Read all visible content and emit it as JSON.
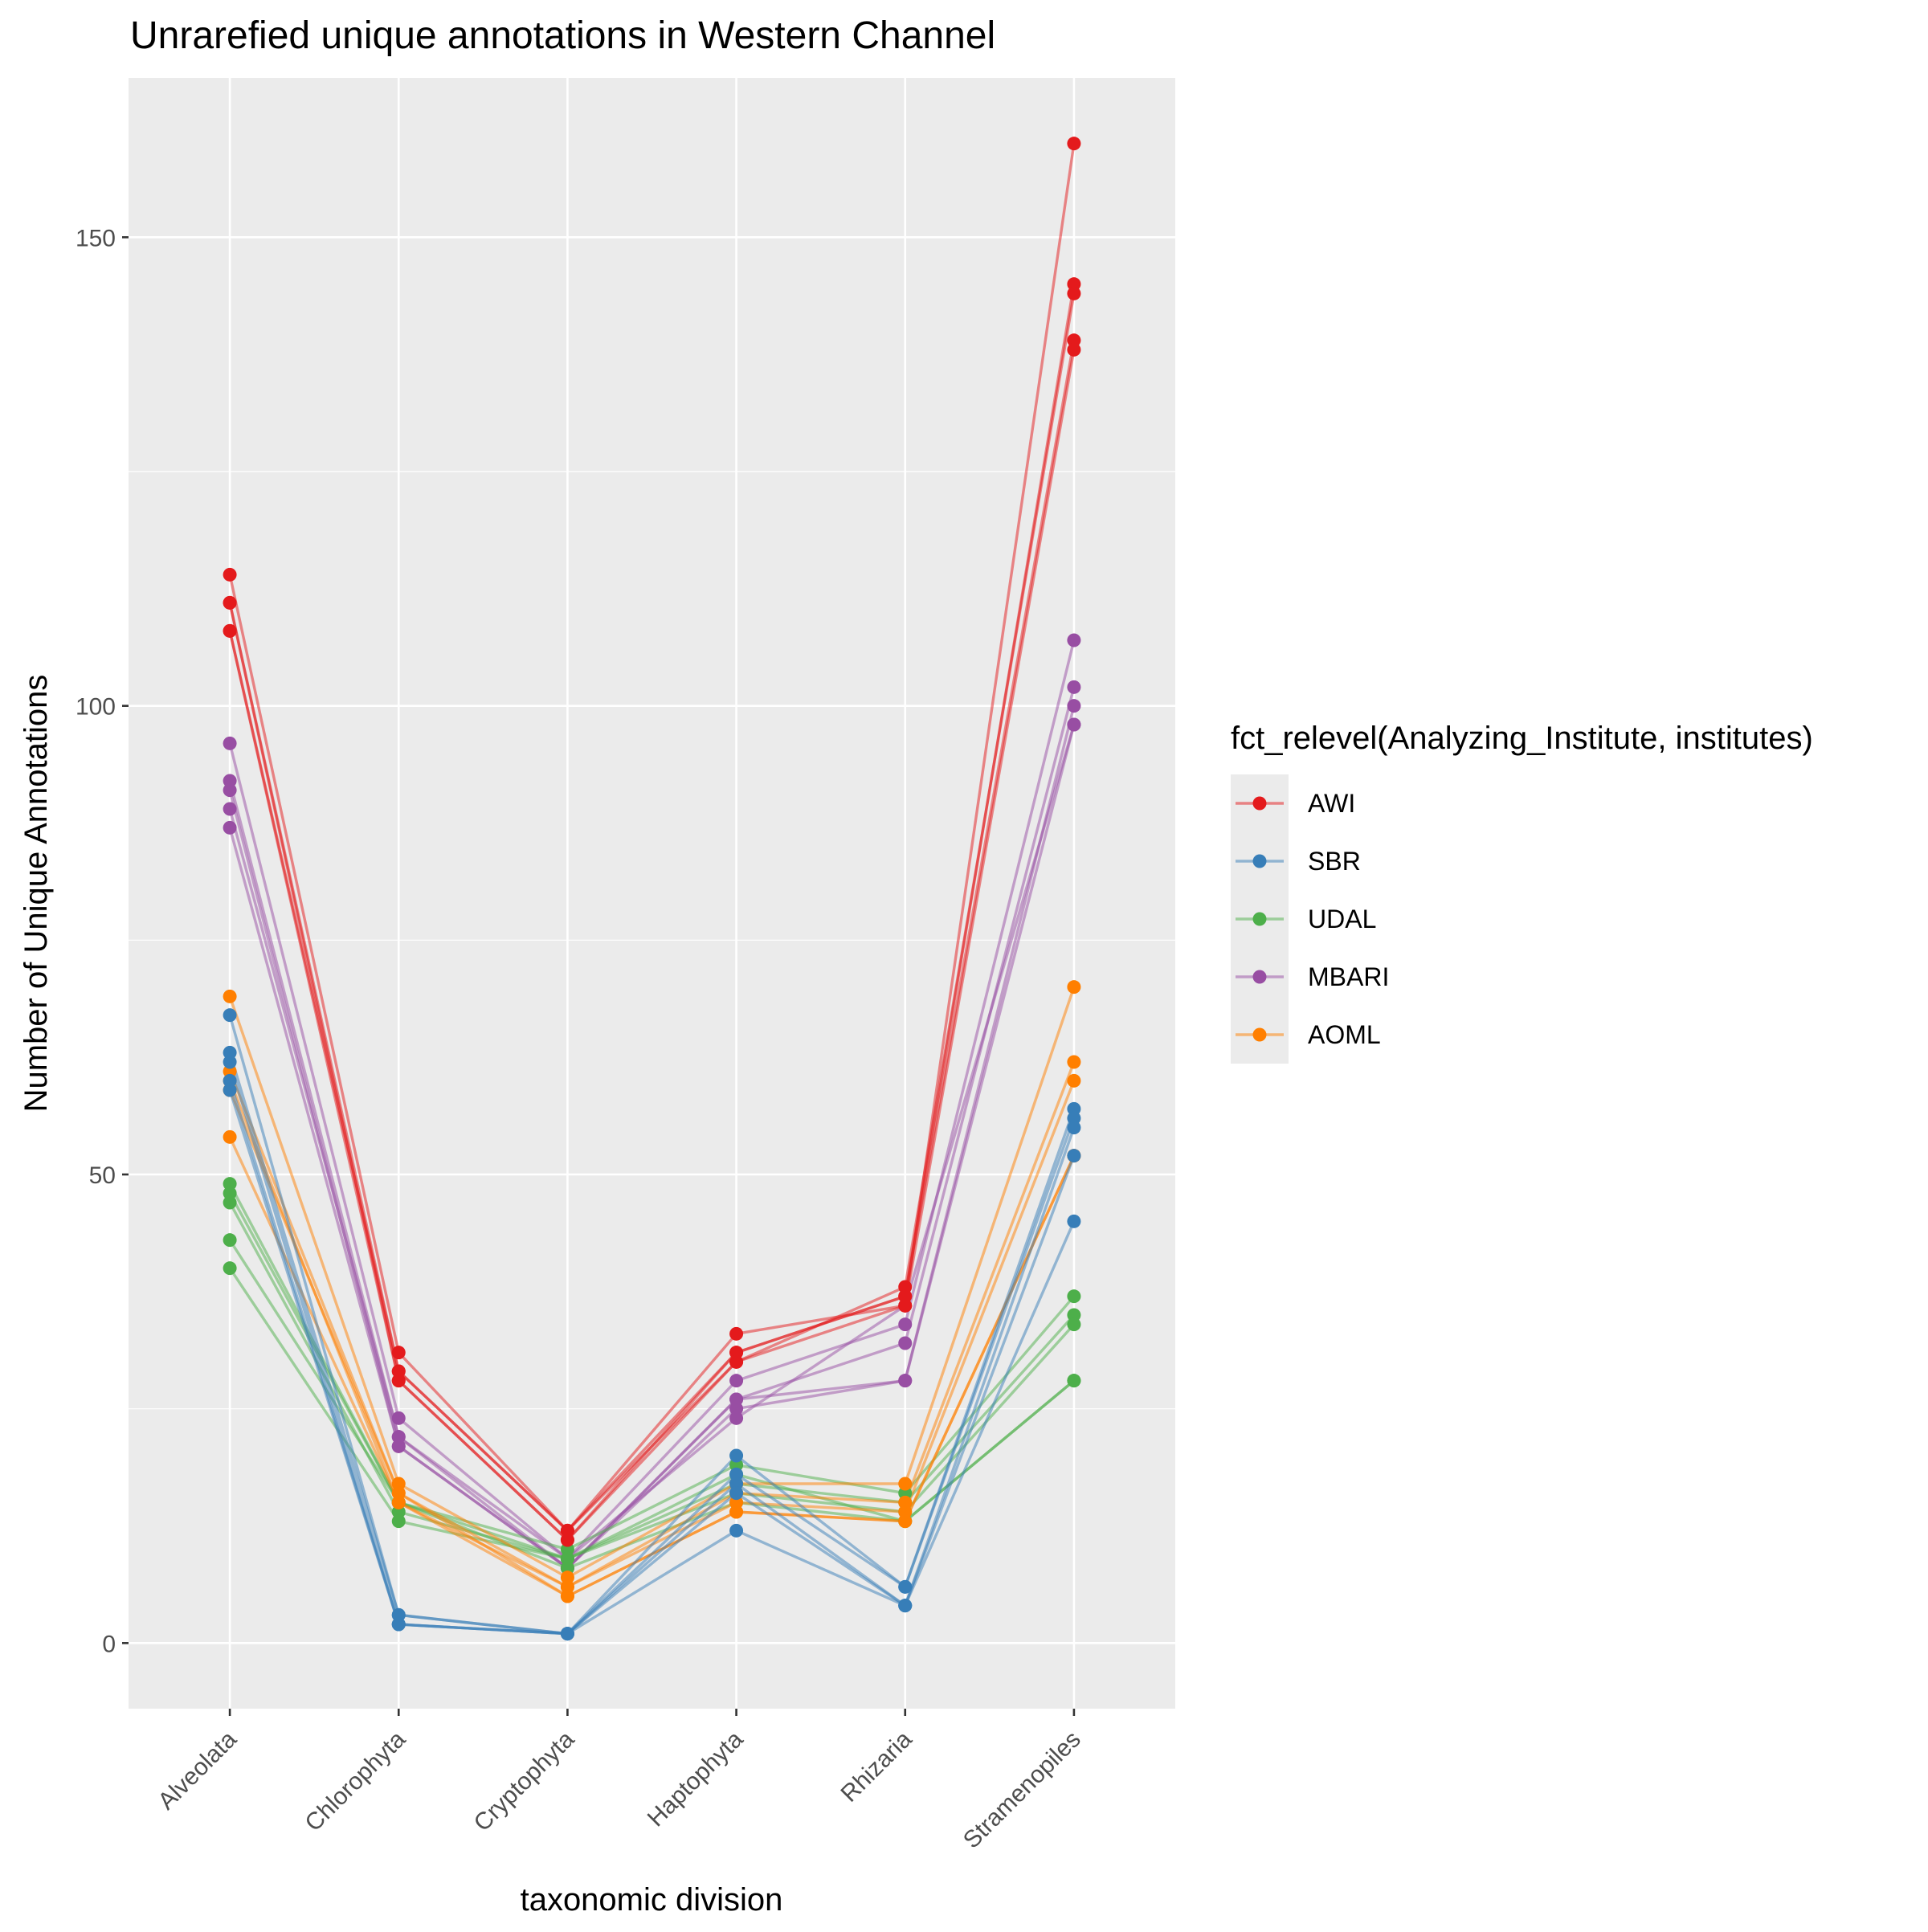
{
  "chart_data": {
    "type": "line",
    "title": "Unrarefied unique annotations in Western Channel",
    "xlabel": "taxonomic division",
    "ylabel": "Number of Unique Annotations",
    "categories": [
      "Alveolata",
      "Chlorophyta",
      "Cryptophyta",
      "Haptophyta",
      "Rhizaria",
      "Stramenopiles"
    ],
    "ylim": [
      -7,
      167
    ],
    "yticks": [
      0,
      50,
      100,
      150
    ],
    "ytick_labels": [
      "0",
      "50",
      "100",
      "150"
    ],
    "grid": true,
    "legend": {
      "title": "fct_relevel(Analyzing_Institute, institutes)",
      "position": "right",
      "entries": [
        "AWI",
        "SBR",
        "UDAL",
        "MBARI",
        "AOML"
      ]
    },
    "series": [
      {
        "name": "MBARI",
        "color": "#984EA3",
        "values": [
          96,
          24,
          9,
          28,
          34,
          107
        ]
      },
      {
        "name": "MBARI",
        "color": "#984EA3",
        "values": [
          92,
          22,
          8,
          26,
          32,
          102
        ]
      },
      {
        "name": "MBARI",
        "color": "#984EA3",
        "values": [
          91,
          21,
          8,
          25,
          28,
          100
        ]
      },
      {
        "name": "MBARI",
        "color": "#984EA3",
        "values": [
          89,
          22,
          9,
          24,
          36,
          98
        ]
      },
      {
        "name": "MBARI",
        "color": "#984EA3",
        "values": [
          87,
          21,
          8,
          26,
          28,
          98
        ]
      },
      {
        "name": "UDAL",
        "color": "#4DAF4A",
        "values": [
          49,
          15,
          10,
          19,
          16,
          37
        ]
      },
      {
        "name": "UDAL",
        "color": "#4DAF4A",
        "values": [
          48,
          15,
          9,
          17,
          15,
          35
        ]
      },
      {
        "name": "UDAL",
        "color": "#4DAF4A",
        "values": [
          47,
          14,
          9,
          16,
          14,
          34
        ]
      },
      {
        "name": "UDAL",
        "color": "#4DAF4A",
        "values": [
          43,
          15,
          8,
          15,
          13,
          28
        ]
      },
      {
        "name": "UDAL",
        "color": "#4DAF4A",
        "values": [
          40,
          13,
          9,
          18,
          13,
          28
        ]
      },
      {
        "name": "AOML",
        "color": "#FF7F00",
        "values": [
          69,
          17,
          7,
          17,
          17,
          70
        ]
      },
      {
        "name": "AOML",
        "color": "#FF7F00",
        "values": [
          61,
          16,
          6,
          16,
          15,
          62
        ]
      },
      {
        "name": "AOML",
        "color": "#FF7F00",
        "values": [
          60,
          15,
          6,
          15,
          14,
          60
        ]
      },
      {
        "name": "AOML",
        "color": "#FF7F00",
        "values": [
          59,
          16,
          5,
          14,
          13,
          52
        ]
      },
      {
        "name": "AOML",
        "color": "#FF7F00",
        "values": [
          54,
          15,
          5,
          14,
          13,
          52
        ]
      },
      {
        "name": "SBR",
        "color": "#377EB8",
        "values": [
          67,
          3,
          1,
          20,
          6,
          57
        ]
      },
      {
        "name": "SBR",
        "color": "#377EB8",
        "values": [
          63,
          3,
          1,
          18,
          6,
          56
        ]
      },
      {
        "name": "SBR",
        "color": "#377EB8",
        "values": [
          62,
          2,
          1,
          17,
          4,
          55
        ]
      },
      {
        "name": "SBR",
        "color": "#377EB8",
        "values": [
          60,
          2,
          1,
          16,
          4,
          52
        ]
      },
      {
        "name": "SBR",
        "color": "#377EB8",
        "values": [
          59,
          2,
          1,
          12,
          4,
          45
        ]
      },
      {
        "name": "AWI",
        "color": "#E41A1C",
        "values": [
          114,
          31,
          12,
          33,
          36,
          160
        ]
      },
      {
        "name": "AWI",
        "color": "#E41A1C",
        "values": [
          111,
          29,
          12,
          31,
          37,
          145
        ]
      },
      {
        "name": "AWI",
        "color": "#E41A1C",
        "values": [
          111,
          28,
          11,
          30,
          38,
          144
        ]
      },
      {
        "name": "AWI",
        "color": "#E41A1C",
        "values": [
          108,
          28,
          11,
          31,
          37,
          139
        ]
      },
      {
        "name": "AWI",
        "color": "#E41A1C",
        "values": [
          108,
          29,
          12,
          30,
          36,
          138
        ]
      }
    ]
  }
}
